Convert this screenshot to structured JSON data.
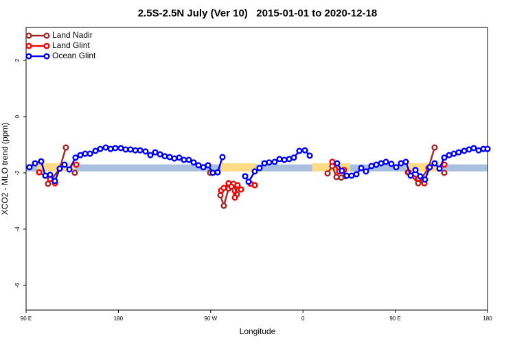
{
  "chart_data": {
    "type": "line",
    "title": "2.5S-2.5N July (Ver 10)   2015-01-01 to 2020-12-18",
    "x_label": "Longitude",
    "y_label": "XCO2 - MLO trend (ppm)",
    "xlim": [
      90,
      540
    ],
    "xticks": [
      {
        "value": 90,
        "label": "90 E"
      },
      180,
      {
        "value": 270,
        "label": "90 W"
      },
      {
        "value": 360,
        "label": "0"
      },
      {
        "value": 450,
        "label": "90 E"
      },
      {
        "value": 540,
        "label": "180"
      }
    ],
    "ylim": [
      -6.88,
      3.17
    ],
    "yticks": [
      2,
      0,
      -2,
      -4,
      -6
    ],
    "legend": "top-left",
    "bands": [
      {
        "color": "#a9bfe0",
        "xlim": [
          90,
          540
        ],
        "ylim": [
          -1.95,
          -1.7
        ]
      },
      {
        "color": "#fddc85",
        "xlim": [
          101,
          138
        ],
        "ylim": [
          -1.95,
          -1.66
        ]
      },
      {
        "color": "#fddc85",
        "xlim": [
          280,
          314
        ],
        "ylim": [
          -1.95,
          -1.66
        ]
      },
      {
        "color": "#fddc85",
        "xlim": [
          369,
          406
        ],
        "ylim": [
          -1.95,
          -1.66
        ]
      },
      {
        "color": "#fddc85",
        "xlim": [
          460,
          493
        ],
        "ylim": [
          -1.95,
          -1.66
        ]
      }
    ],
    "series": [
      {
        "name": "Land Nadir",
        "color": "#a52a2a",
        "x": [
          111.4,
          122.8,
          128.8,
          null,
          137.5,
          null,
          269.5,
          null,
          279.5,
          282.8,
          287.5,
          292.2,
          295.6,
          null,
          384.0,
          388.6,
          392.7,
          397.3,
          401.4,
          null,
          462.3,
          472.4,
          482.4,
          488.4,
          null,
          497.8
        ],
        "values": [
          -2.39,
          -1.85,
          -1.1,
          null,
          -2.0,
          null,
          -2.0,
          null,
          -2.8,
          -3.17,
          -2.56,
          -2.39,
          -2.76,
          null,
          -2.02,
          -1.76,
          -2.15,
          -2.17,
          -2.12,
          null,
          -1.98,
          -2.37,
          -1.83,
          -1.1,
          null,
          -2.0
        ]
      },
      {
        "name": "Land Glint",
        "color": "#ff0000",
        "x": [
          102.7,
          113.4,
          118.1,
          null,
          138.9,
          null,
          280.2,
          282.8,
          287.5,
          290.2,
          293.6,
          296.2,
          299.6,
          null,
          309.0,
          313.0,
          null,
          388.6,
          395.3,
          400.0,
          null,
          463.0,
          472.4,
          478.4,
          null,
          497.8
        ],
        "values": [
          -1.98,
          -2.22,
          -2.37,
          null,
          -1.71,
          null,
          -2.63,
          -2.54,
          -2.37,
          -2.49,
          -2.88,
          -2.44,
          -2.59,
          null,
          -2.39,
          -2.44,
          null,
          -1.61,
          -1.95,
          -1.9,
          null,
          -1.98,
          -2.2,
          -2.37,
          null,
          -1.71
        ]
      },
      {
        "name": "Ocean Glint",
        "color": "#0000ff",
        "x": [
          93.3,
          98.7,
          104.7,
          108.7,
          113.4,
          118.1,
          122.8,
          127.5,
          132.2,
          138.2,
          142.9,
          147.6,
          152.3,
          157.6,
          162.3,
          167.7,
          172.4,
          177.0,
          182.4,
          187.1,
          191.8,
          196.5,
          201.2,
          206.5,
          211.2,
          215.9,
          220.6,
          225.3,
          230.0,
          234.6,
          239.3,
          244.0,
          248.7,
          253.4,
          258.1,
          262.8,
          267.4,
          272.1,
          276.8,
          281.5,
          null,
          303.6,
          307.0,
          313.0,
          317.7,
          322.4,
          327.0,
          332.4,
          337.1,
          341.8,
          346.5,
          351.1,
          356.5,
          361.9,
          366.6,
          null,
          393.3,
          398.0,
          402.7,
          407.4,
          412.1,
          416.8,
          421.4,
          426.8,
          431.5,
          436.2,
          440.9,
          446.2,
          450.9,
          455.6,
          460.3,
          465.0,
          469.7,
          474.3,
          479.0,
          483.7,
          488.4,
          493.1,
          497.8,
          502.5,
          507.2,
          511.9,
          517.2,
          521.9,
          526.6,
          531.3,
          536.0,
          540.0
        ],
        "values": [
          -1.8,
          -1.66,
          -1.59,
          -2.1,
          -2.07,
          -2.29,
          -1.85,
          -1.71,
          -1.88,
          -1.46,
          -1.37,
          -1.32,
          -1.32,
          -1.22,
          -1.15,
          -1.1,
          -1.15,
          -1.12,
          -1.12,
          -1.17,
          -1.17,
          -1.2,
          -1.2,
          -1.24,
          -1.37,
          -1.27,
          -1.34,
          -1.41,
          -1.44,
          -1.49,
          -1.46,
          -1.54,
          -1.54,
          -1.63,
          -1.73,
          -1.8,
          -1.73,
          -2.0,
          -1.98,
          -1.44,
          null,
          -2.12,
          -2.32,
          -1.95,
          -1.83,
          -1.66,
          -1.63,
          -1.61,
          -1.51,
          -1.54,
          -1.51,
          -1.46,
          -1.22,
          -1.2,
          -1.39,
          null,
          -1.66,
          -1.93,
          -2.1,
          -2.1,
          -2.05,
          -1.83,
          -1.95,
          -1.76,
          -1.71,
          -1.66,
          -1.61,
          -1.68,
          -1.8,
          -1.66,
          -1.61,
          -2.1,
          -1.9,
          -2.12,
          -2.24,
          -1.8,
          -1.66,
          -1.85,
          -1.46,
          -1.37,
          -1.32,
          -1.27,
          -1.22,
          -1.17,
          -1.12,
          -1.2,
          -1.15,
          -1.15
        ]
      }
    ]
  }
}
